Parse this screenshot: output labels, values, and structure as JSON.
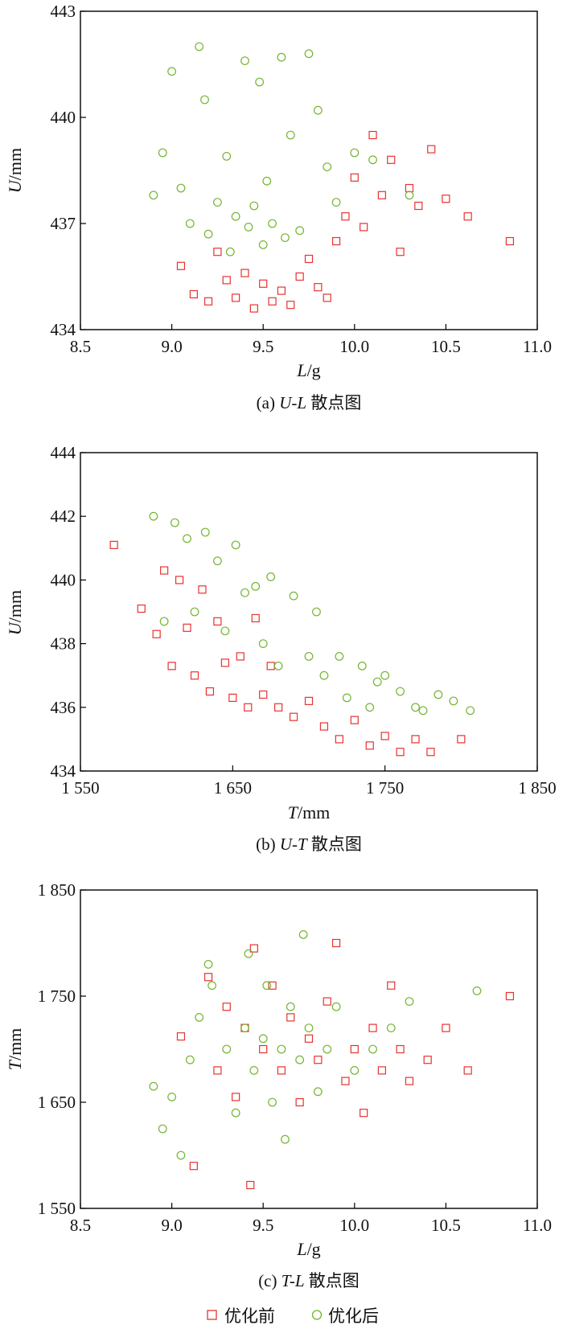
{
  "colors": {
    "before": "#e8322f",
    "after": "#74b42f",
    "axis": "#000000"
  },
  "legend": {
    "before_label": "优化前",
    "after_label": "优化后"
  },
  "chart_data": [
    {
      "type": "scatter",
      "caption": "(a) U-L 散点图",
      "caption_prefix": "(a) ",
      "caption_var": "U-L",
      "caption_suffix": " 散点图",
      "xlabel_var": "L",
      "xlabel_unit": "/g",
      "ylabel_var": "U",
      "ylabel_unit": "/mm",
      "xlim": [
        8.5,
        11.0
      ],
      "ylim": [
        434,
        443
      ],
      "xticks": [
        8.5,
        9.0,
        9.5,
        10.0,
        10.5,
        11.0
      ],
      "xtick_labels": [
        "8.5",
        "9.0",
        "9.5",
        "10.0",
        "10.5",
        "11.0"
      ],
      "yticks": [
        434,
        437,
        440,
        443
      ],
      "ytick_labels": [
        "434",
        "437",
        "440",
        "443"
      ],
      "series": [
        {
          "name": "优化前",
          "marker": "square",
          "points": [
            [
              9.05,
              435.8
            ],
            [
              9.12,
              435.0
            ],
            [
              9.2,
              434.8
            ],
            [
              9.25,
              436.2
            ],
            [
              9.3,
              435.4
            ],
            [
              9.35,
              434.9
            ],
            [
              9.4,
              435.6
            ],
            [
              9.45,
              434.6
            ],
            [
              9.5,
              435.3
            ],
            [
              9.55,
              434.8
            ],
            [
              9.6,
              435.1
            ],
            [
              9.65,
              434.7
            ],
            [
              9.7,
              435.5
            ],
            [
              9.75,
              436.0
            ],
            [
              9.8,
              435.2
            ],
            [
              9.85,
              434.9
            ],
            [
              9.9,
              436.5
            ],
            [
              9.95,
              437.2
            ],
            [
              10.0,
              438.3
            ],
            [
              10.05,
              436.9
            ],
            [
              10.1,
              439.5
            ],
            [
              10.15,
              437.8
            ],
            [
              10.2,
              438.8
            ],
            [
              10.25,
              436.2
            ],
            [
              10.3,
              438.0
            ],
            [
              10.35,
              437.5
            ],
            [
              10.42,
              439.1
            ],
            [
              10.5,
              437.7
            ],
            [
              10.62,
              437.2
            ],
            [
              10.85,
              436.5
            ]
          ]
        },
        {
          "name": "优化后",
          "marker": "circle",
          "points": [
            [
              8.9,
              437.8
            ],
            [
              8.95,
              439.0
            ],
            [
              9.0,
              441.3
            ],
            [
              9.05,
              438.0
            ],
            [
              9.1,
              437.0
            ],
            [
              9.15,
              442.0
            ],
            [
              9.18,
              440.5
            ],
            [
              9.2,
              436.7
            ],
            [
              9.25,
              437.6
            ],
            [
              9.3,
              438.9
            ],
            [
              9.32,
              436.2
            ],
            [
              9.35,
              437.2
            ],
            [
              9.4,
              441.6
            ],
            [
              9.42,
              436.9
            ],
            [
              9.45,
              437.5
            ],
            [
              9.48,
              441.0
            ],
            [
              9.5,
              436.4
            ],
            [
              9.52,
              438.2
            ],
            [
              9.55,
              437.0
            ],
            [
              9.6,
              441.7
            ],
            [
              9.62,
              436.6
            ],
            [
              9.65,
              439.5
            ],
            [
              9.7,
              436.8
            ],
            [
              9.75,
              441.8
            ],
            [
              9.8,
              440.2
            ],
            [
              9.85,
              438.6
            ],
            [
              9.9,
              437.6
            ],
            [
              10.0,
              439.0
            ],
            [
              10.1,
              438.8
            ],
            [
              10.3,
              437.8
            ]
          ]
        }
      ]
    },
    {
      "type": "scatter",
      "caption": "(b) U-T 散点图",
      "caption_prefix": "(b) ",
      "caption_var": "U-T",
      "caption_suffix": " 散点图",
      "xlabel_var": "T",
      "xlabel_unit": "/mm",
      "ylabel_var": "U",
      "ylabel_unit": "/mm",
      "xlim": [
        1550,
        1850
      ],
      "ylim": [
        434,
        444
      ],
      "xticks": [
        1550,
        1650,
        1750,
        1850
      ],
      "xtick_labels": [
        "1 550",
        "1 650",
        "1 750",
        "1 850"
      ],
      "yticks": [
        434,
        436,
        438,
        440,
        442,
        444
      ],
      "ytick_labels": [
        "434",
        "436",
        "438",
        "440",
        "442",
        "444"
      ],
      "series": [
        {
          "name": "优化前",
          "marker": "square",
          "points": [
            [
              1572,
              441.1
            ],
            [
              1590,
              439.1
            ],
            [
              1600,
              438.3
            ],
            [
              1605,
              440.3
            ],
            [
              1610,
              437.3
            ],
            [
              1615,
              440.0
            ],
            [
              1620,
              438.5
            ],
            [
              1625,
              437.0
            ],
            [
              1630,
              439.7
            ],
            [
              1635,
              436.5
            ],
            [
              1640,
              438.7
            ],
            [
              1645,
              437.4
            ],
            [
              1650,
              436.3
            ],
            [
              1655,
              437.6
            ],
            [
              1660,
              436.0
            ],
            [
              1665,
              438.8
            ],
            [
              1670,
              436.4
            ],
            [
              1675,
              437.3
            ],
            [
              1680,
              436.0
            ],
            [
              1690,
              435.7
            ],
            [
              1700,
              436.2
            ],
            [
              1710,
              435.4
            ],
            [
              1720,
              435.0
            ],
            [
              1730,
              435.6
            ],
            [
              1740,
              434.8
            ],
            [
              1750,
              435.1
            ],
            [
              1760,
              434.6
            ],
            [
              1770,
              435.0
            ],
            [
              1780,
              434.6
            ],
            [
              1800,
              435.0
            ]
          ]
        },
        {
          "name": "优化后",
          "marker": "circle",
          "points": [
            [
              1598,
              442.0
            ],
            [
              1605,
              438.7
            ],
            [
              1612,
              441.8
            ],
            [
              1620,
              441.3
            ],
            [
              1625,
              439.0
            ],
            [
              1632,
              441.5
            ],
            [
              1640,
              440.6
            ],
            [
              1645,
              438.4
            ],
            [
              1652,
              441.1
            ],
            [
              1658,
              439.6
            ],
            [
              1665,
              439.8
            ],
            [
              1670,
              438.0
            ],
            [
              1675,
              440.1
            ],
            [
              1680,
              437.3
            ],
            [
              1690,
              439.5
            ],
            [
              1700,
              437.6
            ],
            [
              1705,
              439.0
            ],
            [
              1710,
              437.0
            ],
            [
              1720,
              437.6
            ],
            [
              1725,
              436.3
            ],
            [
              1735,
              437.3
            ],
            [
              1740,
              436.0
            ],
            [
              1745,
              436.8
            ],
            [
              1750,
              437.0
            ],
            [
              1760,
              436.5
            ],
            [
              1770,
              436.0
            ],
            [
              1775,
              435.9
            ],
            [
              1785,
              436.4
            ],
            [
              1795,
              436.2
            ],
            [
              1806,
              435.9
            ]
          ]
        }
      ]
    },
    {
      "type": "scatter",
      "caption": "(c) T-L 散点图",
      "caption_prefix": "(c) ",
      "caption_var": "T-L",
      "caption_suffix": " 散点图",
      "xlabel_var": "L",
      "xlabel_unit": "/g",
      "ylabel_var": "T",
      "ylabel_unit": "/mm",
      "xlim": [
        8.5,
        11.0
      ],
      "ylim": [
        1550,
        1850
      ],
      "xticks": [
        8.5,
        9.0,
        9.5,
        10.0,
        10.5,
        11.0
      ],
      "xtick_labels": [
        "8.5",
        "9.0",
        "9.5",
        "10.0",
        "10.5",
        "11.0"
      ],
      "yticks": [
        1550,
        1650,
        1750,
        1850
      ],
      "ytick_labels": [
        "1 550",
        "1 650",
        "1 750",
        "1 850"
      ],
      "series": [
        {
          "name": "优化前",
          "marker": "square",
          "points": [
            [
              9.05,
              1712
            ],
            [
              9.12,
              1590
            ],
            [
              9.2,
              1768
            ],
            [
              9.25,
              1680
            ],
            [
              9.3,
              1740
            ],
            [
              9.35,
              1655
            ],
            [
              9.4,
              1720
            ],
            [
              9.43,
              1572
            ],
            [
              9.45,
              1795
            ],
            [
              9.5,
              1700
            ],
            [
              9.55,
              1760
            ],
            [
              9.6,
              1680
            ],
            [
              9.65,
              1730
            ],
            [
              9.7,
              1650
            ],
            [
              9.75,
              1710
            ],
            [
              9.8,
              1690
            ],
            [
              9.85,
              1745
            ],
            [
              9.9,
              1800
            ],
            [
              9.95,
              1670
            ],
            [
              10.0,
              1700
            ],
            [
              10.05,
              1640
            ],
            [
              10.1,
              1720
            ],
            [
              10.15,
              1680
            ],
            [
              10.2,
              1760
            ],
            [
              10.25,
              1700
            ],
            [
              10.3,
              1670
            ],
            [
              10.4,
              1690
            ],
            [
              10.5,
              1720
            ],
            [
              10.62,
              1680
            ],
            [
              10.85,
              1750
            ]
          ]
        },
        {
          "name": "优化后",
          "marker": "circle",
          "points": [
            [
              8.9,
              1665
            ],
            [
              8.95,
              1625
            ],
            [
              9.0,
              1655
            ],
            [
              9.05,
              1600
            ],
            [
              9.1,
              1690
            ],
            [
              9.15,
              1730
            ],
            [
              9.2,
              1780
            ],
            [
              9.22,
              1760
            ],
            [
              9.3,
              1700
            ],
            [
              9.35,
              1640
            ],
            [
              9.4,
              1720
            ],
            [
              9.42,
              1790
            ],
            [
              9.45,
              1680
            ],
            [
              9.5,
              1710
            ],
            [
              9.52,
              1760
            ],
            [
              9.55,
              1650
            ],
            [
              9.6,
              1700
            ],
            [
              9.62,
              1615
            ],
            [
              9.65,
              1740
            ],
            [
              9.7,
              1690
            ],
            [
              9.72,
              1808
            ],
            [
              9.75,
              1720
            ],
            [
              9.8,
              1660
            ],
            [
              9.85,
              1700
            ],
            [
              9.9,
              1740
            ],
            [
              10.0,
              1680
            ],
            [
              10.1,
              1700
            ],
            [
              10.2,
              1720
            ],
            [
              10.3,
              1745
            ],
            [
              10.67,
              1755
            ]
          ]
        }
      ]
    }
  ]
}
